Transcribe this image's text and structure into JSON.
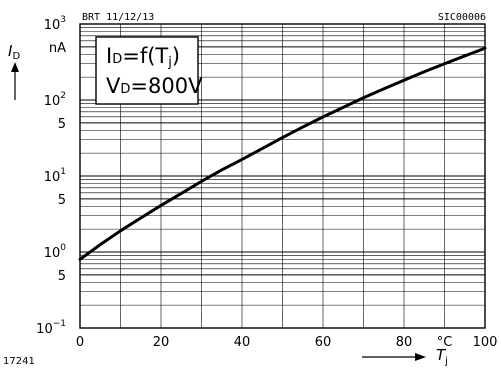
{
  "header": {
    "left_code": "BRT 11/12/13",
    "right_code": "SIC00006",
    "figure_number": "17241"
  },
  "chart_data": {
    "type": "line",
    "x": [
      0,
      5,
      10,
      15,
      20,
      25,
      30,
      35,
      40,
      45,
      50,
      55,
      60,
      65,
      70,
      75,
      80,
      85,
      90,
      95,
      100
    ],
    "series": [
      {
        "name": "",
        "values": [
          0.8,
          1.25,
          1.9,
          2.8,
          4.1,
          5.9,
          8.5,
          12,
          16.5,
          23,
          32,
          44,
          60,
          80,
          107,
          140,
          182,
          235,
          300,
          380,
          480
        ]
      }
    ],
    "xlim": [
      0,
      100
    ],
    "ylim": [
      0.1,
      1000
    ],
    "yscale": "log",
    "x_ticks": [
      "0",
      "20",
      "40",
      "60",
      "80",
      "100"
    ],
    "x_unit": "°C",
    "y_ticks": [
      {
        "base": "10",
        "exp": "−1"
      },
      {
        "base": "5",
        "exp": ""
      },
      {
        "base": "10",
        "exp": "0"
      },
      {
        "base": "5",
        "exp": ""
      },
      {
        "base": "10",
        "exp": "1"
      },
      {
        "base": "5",
        "exp": ""
      },
      {
        "base": "10",
        "exp": "2"
      },
      {
        "base": "nA",
        "exp": ""
      },
      {
        "base": "10",
        "exp": "3"
      }
    ],
    "xlabel": "T",
    "xlabel_sub": "j",
    "ylabel": "I",
    "ylabel_sub": "D",
    "annotation": {
      "line1_main": "I",
      "line1_sub": "D",
      "line1_rest": "=f(T",
      "line1_sub2": "j",
      "line1_end": ")",
      "line2_main": "V",
      "line2_sub": "D",
      "line2_rest": "=800V"
    },
    "grid": true
  }
}
